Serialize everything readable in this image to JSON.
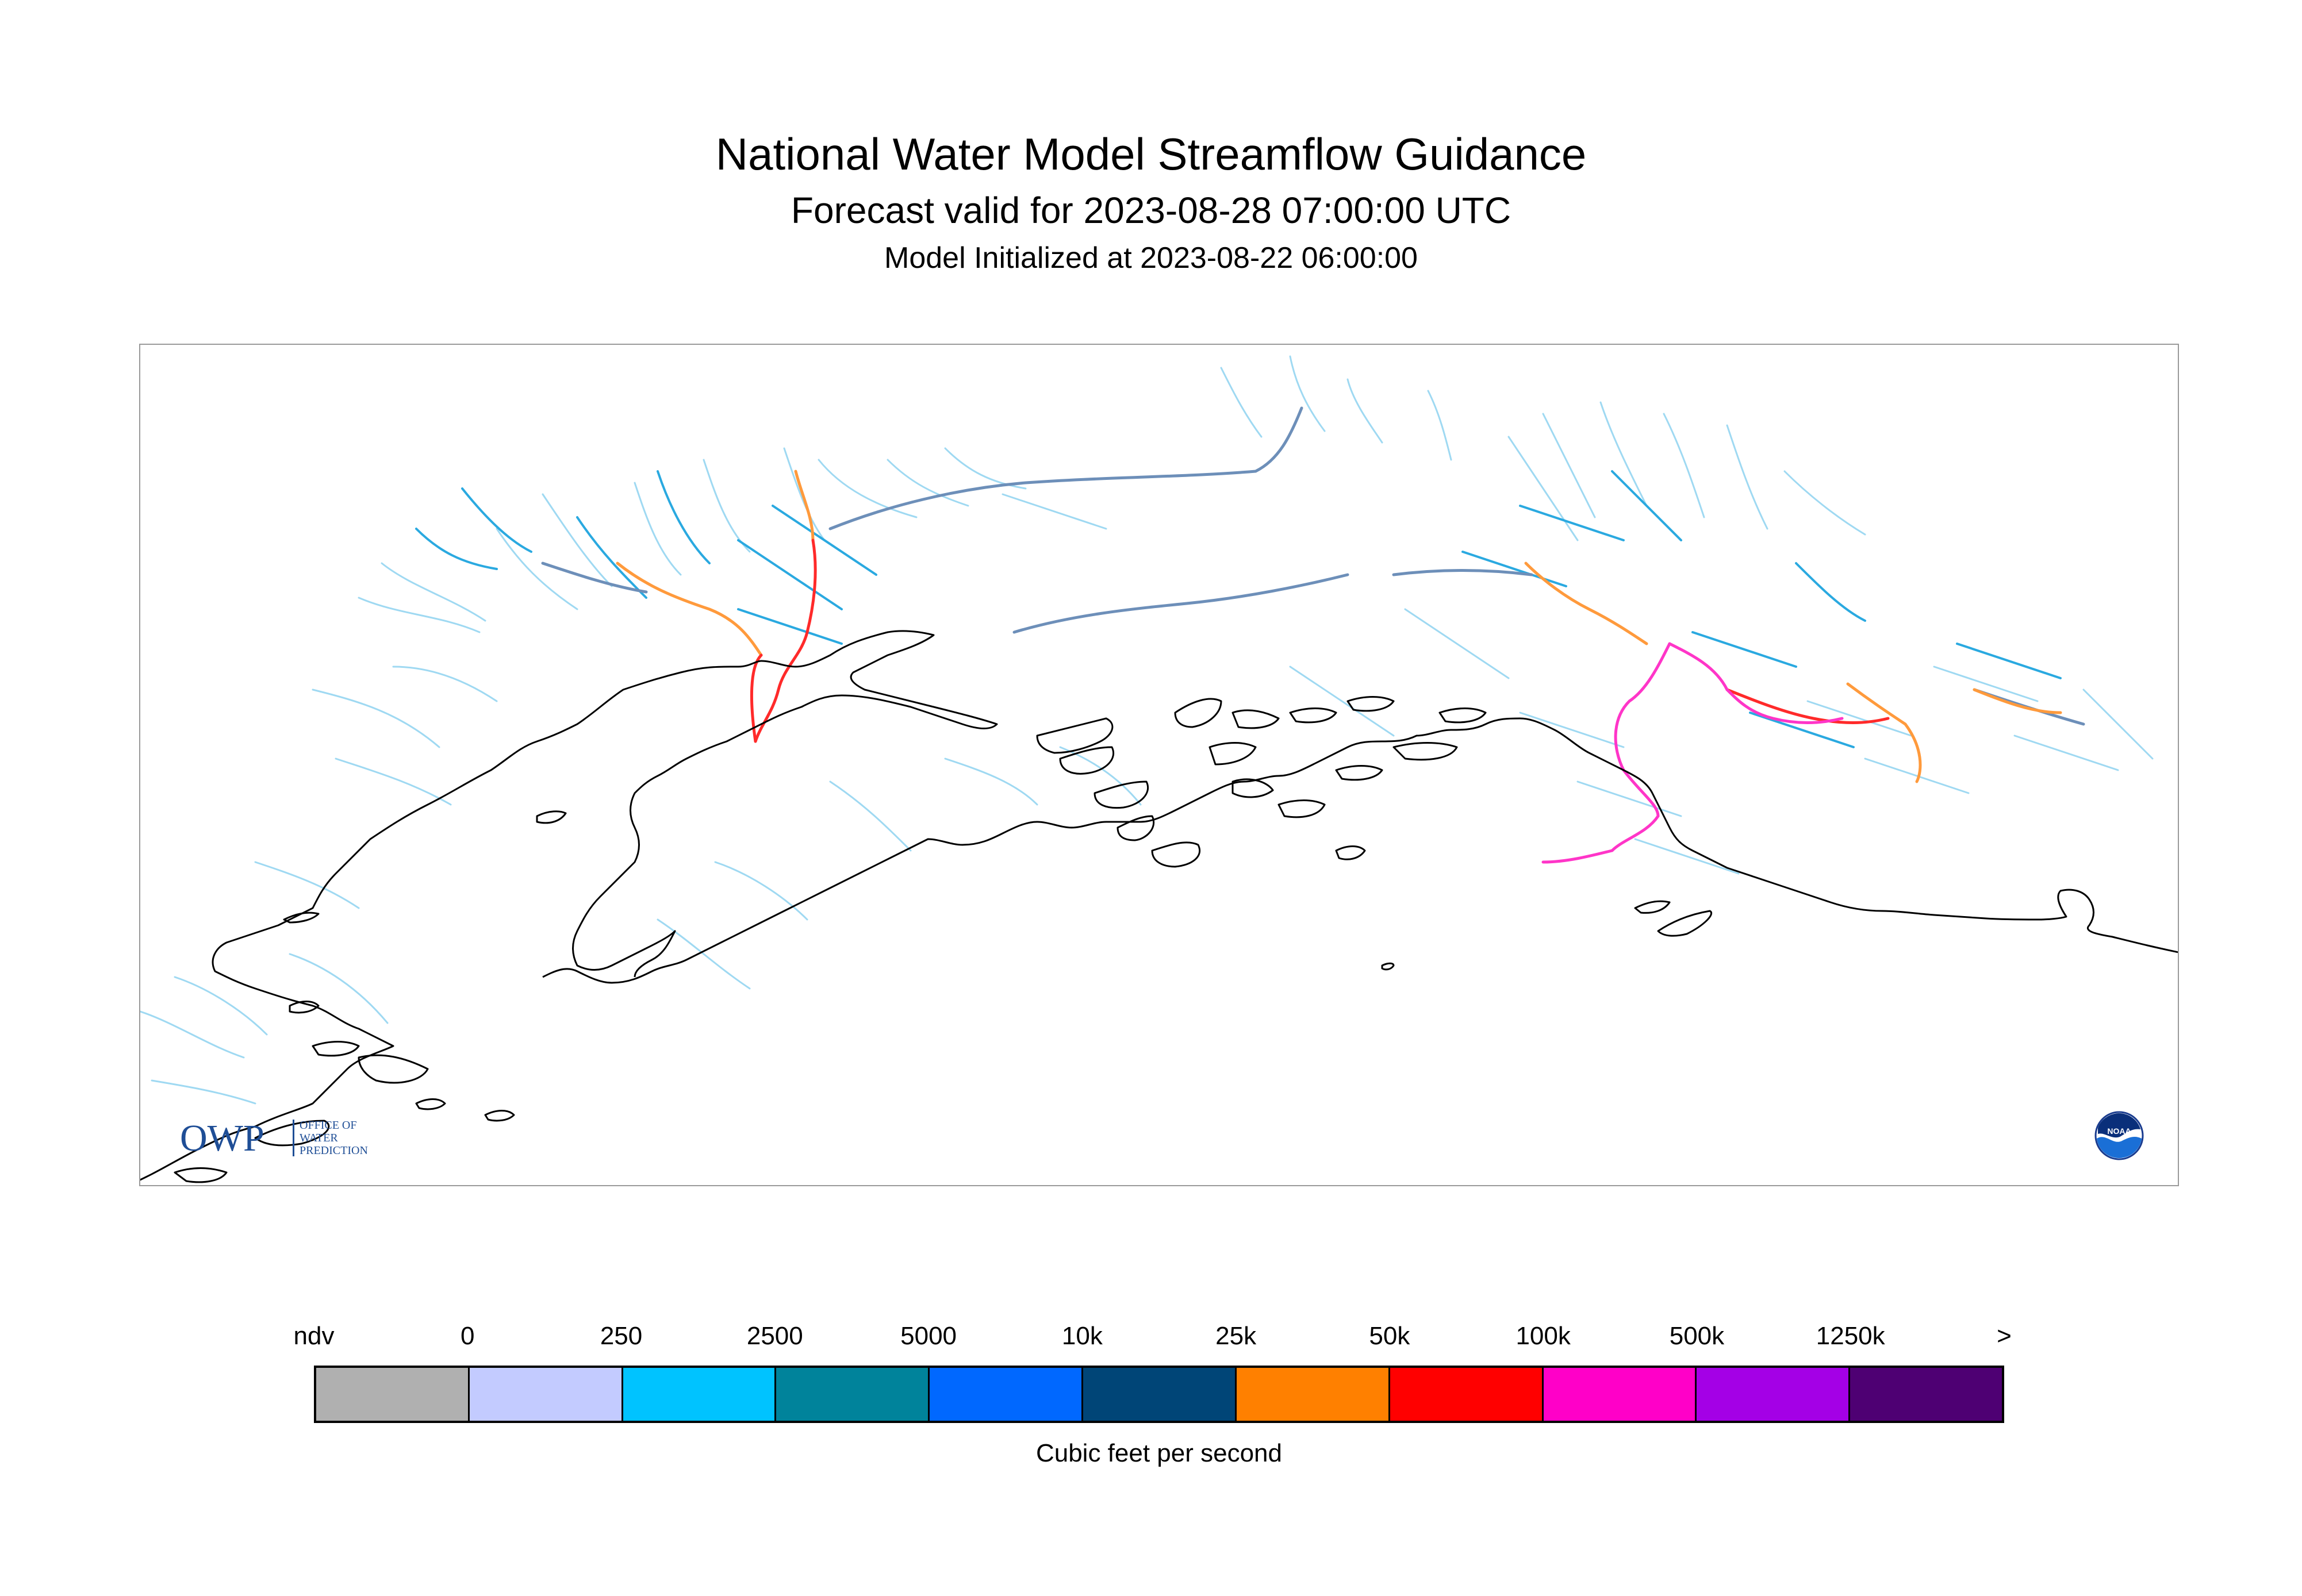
{
  "header": {
    "title": "National Water Model Streamflow Guidance",
    "subtitle": "Forecast valid for 2023-08-28 07:00:00 UTC",
    "init": "Model Initialized at 2023-08-22 06:00:00"
  },
  "logos": {
    "owp": {
      "mark": "OWP",
      "text": "OFFICE OF WATER PREDICTION",
      "color": "#1f4e96"
    },
    "noaa": {
      "text": "NOAA",
      "color": "#1a6fd6"
    }
  },
  "map": {
    "coastline_color": "#000000",
    "river_colors": {
      "small": "#9fd9f2",
      "medium": "#2aa9e0",
      "large": "#6d8fb9",
      "orange": "#ff9a3c",
      "red": "#ff2a2a",
      "magenta": "#ff35c8"
    }
  },
  "legend": {
    "ticks": [
      "ndv",
      "0",
      "250",
      "2500",
      "5000",
      "10k",
      "25k",
      "50k",
      "100k",
      "500k",
      "1250k",
      ">"
    ],
    "colors": [
      "#b0b0b0",
      "#c3cbff",
      "#00c3ff",
      "#00839b",
      "#0068ff",
      "#004577",
      "#ff8000",
      "#ff0000",
      "#ff00c8",
      "#a400e6",
      "#4e0073"
    ],
    "unit": "Cubic feet per second"
  }
}
